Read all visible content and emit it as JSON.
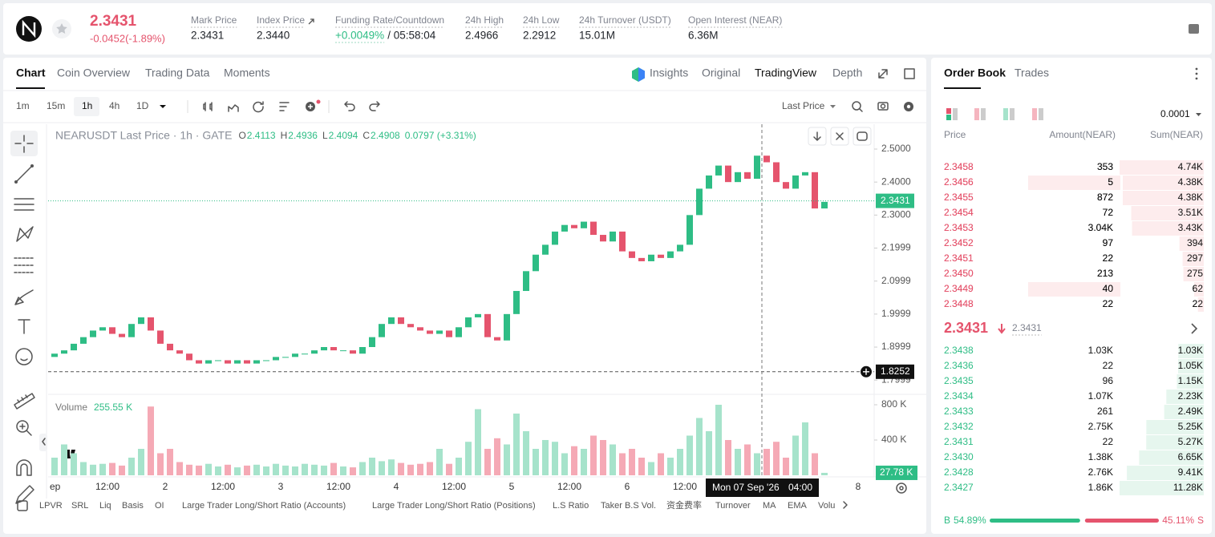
{
  "header": {
    "price": "2.3431",
    "change": "-0.0452(-1.89%)",
    "stats": [
      {
        "label": "Mark Price",
        "value": "2.3431"
      },
      {
        "label": "Index Price",
        "value": "2.3440"
      },
      {
        "label": "Funding Rate/Countdown",
        "value": "+0.0049%",
        "extra": "/ 05:58:04"
      },
      {
        "label": "24h High",
        "value": "2.4966"
      },
      {
        "label": "24h Low",
        "value": "2.2912"
      },
      {
        "label": "24h Turnover (USDT)",
        "value": "15.01M"
      },
      {
        "label": "Open Interest (NEAR)",
        "value": "6.36M"
      }
    ]
  },
  "chart_tabs": [
    "Chart",
    "Coin Overview",
    "Trading Data",
    "Moments"
  ],
  "view_tabs": [
    "Insights",
    "Original",
    "TradingView",
    "Depth"
  ],
  "intervals": [
    "1m",
    "15m",
    "1h",
    "4h",
    "1D"
  ],
  "price_type": "Last Price",
  "indicators": [
    "LPVR",
    "SRL",
    "Liq",
    "Basis",
    "OI",
    "Large Trader Long/Short Ratio (Accounts)",
    "Large Trader Long/Short Ratio (Positions)",
    "L.S Ratio",
    "Taker B.S Vol.",
    "资金费率",
    "Turnover",
    "MA",
    "EMA",
    "Volu"
  ],
  "chart_data": {
    "type": "candlestick",
    "legend": {
      "title": "NEARUSDT Last Price · 1h · GATE",
      "ohlc": [
        {
          "label": "O",
          "value": "2.4113"
        },
        {
          "label": "H",
          "value": "2.4936"
        },
        {
          "label": "L",
          "value": "2.4094"
        },
        {
          "label": "C",
          "value": "2.4908"
        }
      ],
      "change": "0.0797 (+3.31%)"
    },
    "x_labels": [
      "ep",
      "12:00",
      "2",
      "12:00",
      "3",
      "12:00",
      "4",
      "12:00",
      "5",
      "12:00",
      "6",
      "12:00",
      null,
      null,
      "8"
    ],
    "opens": [
      1.87,
      1.88,
      1.89,
      1.91,
      1.93,
      1.95,
      1.96,
      1.94,
      1.93,
      1.97,
      1.99,
      1.95,
      1.91,
      1.89,
      1.88,
      1.86,
      1.85,
      1.86,
      1.86,
      1.85,
      1.86,
      1.85,
      1.86,
      1.86,
      1.87,
      1.87,
      1.88,
      1.88,
      1.89,
      1.9,
      1.89,
      1.89,
      1.88,
      1.9,
      1.93,
      1.97,
      1.99,
      1.97,
      1.96,
      1.95,
      1.94,
      1.95,
      1.93,
      1.96,
      1.99,
      2.0,
      1.93,
      1.92,
      2.0,
      2.07,
      2.13,
      2.18,
      2.21,
      2.25,
      2.27,
      2.26,
      2.28,
      2.24,
      2.22,
      2.25,
      2.19,
      2.17,
      2.16,
      2.18,
      2.17,
      2.19,
      2.21,
      2.3,
      2.38,
      2.42,
      2.45,
      2.4,
      2.43,
      2.41,
      2.48,
      2.46,
      2.4,
      2.38,
      2.42,
      2.43,
      2.32
    ],
    "closes": [
      1.88,
      1.89,
      1.91,
      1.93,
      1.95,
      1.96,
      1.94,
      1.93,
      1.97,
      1.99,
      1.95,
      1.91,
      1.89,
      1.88,
      1.86,
      1.85,
      1.86,
      1.86,
      1.85,
      1.86,
      1.85,
      1.86,
      1.86,
      1.87,
      1.87,
      1.88,
      1.88,
      1.89,
      1.9,
      1.89,
      1.89,
      1.88,
      1.9,
      1.93,
      1.97,
      1.99,
      1.97,
      1.96,
      1.95,
      1.94,
      1.95,
      1.93,
      1.96,
      1.99,
      2.0,
      1.93,
      1.92,
      2.0,
      2.07,
      2.13,
      2.18,
      2.21,
      2.25,
      2.27,
      2.26,
      2.28,
      2.24,
      2.22,
      2.25,
      2.19,
      2.17,
      2.16,
      2.18,
      2.17,
      2.19,
      2.21,
      2.3,
      2.38,
      2.42,
      2.45,
      2.4,
      2.43,
      2.41,
      2.48,
      2.46,
      2.4,
      2.38,
      2.42,
      2.43,
      2.32,
      2.34
    ],
    "up_color": "#2ebd85",
    "down_color": "#e5546d",
    "ylim": [
      1.7567,
      2.5753
    ],
    "yticks": [
      {
        "value": 2.5,
        "label": "2.5000"
      },
      {
        "value": 2.4,
        "label": "2.4000"
      },
      {
        "value": 2.3,
        "label": "2.3000"
      },
      2.1999,
      2.0999,
      1.9999,
      1.8999,
      1.7999
    ],
    "last_price": {
      "value": 2.3431,
      "label": "2.3431"
    },
    "crosshair": {
      "value": 1.8252,
      "label": "1.8252",
      "date": "Mon 07 Sep '26",
      "time": "04:00"
    },
    "volume": {
      "name": "Volume",
      "legend_value": "255.55 K",
      "up_color": "#a6e3cb",
      "down_color": "#f5a9b5",
      "values": [
        200,
        350,
        250,
        150,
        120,
        130,
        140,
        110,
        200,
        300,
        780,
        250,
        300,
        150,
        120,
        110,
        130,
        100,
        120,
        90,
        110,
        120,
        100,
        130,
        110,
        100,
        130,
        120,
        110,
        140,
        100,
        90,
        150,
        200,
        160,
        180,
        140,
        120,
        130,
        150,
        300,
        130,
        200,
        380,
        750,
        300,
        420,
        350,
        700,
        500,
        300,
        400,
        380,
        250,
        330,
        300,
        450,
        400,
        350,
        250,
        300,
        200,
        150,
        250,
        200,
        300,
        450,
        650,
        500,
        800,
        400,
        300,
        350,
        250,
        300,
        380,
        200,
        450,
        600,
        250,
        27.78
      ],
      "ylim": [
        0,
        891
      ],
      "yticks": [
        {
          "value": 800,
          "label": "800 K"
        },
        {
          "value": 400,
          "label": "400 K"
        }
      ],
      "current": {
        "value": 27.78,
        "label": "27.78 K"
      }
    }
  },
  "order_book": {
    "tabs": [
      "Order Book",
      "Trades"
    ],
    "precision": "0.0001",
    "columns": [
      "Price",
      "Amount(NEAR)",
      "Sum(NEAR)"
    ],
    "asks": [
      {
        "price": "2.3458",
        "amount": "353",
        "sum": {
          "value": 4740,
          "label": "4.74K"
        }
      },
      {
        "price": "2.3456",
        "amount": "5",
        "sum": {
          "value": 4380,
          "label": "4.38K"
        }
      },
      {
        "price": "2.3455",
        "amount": "872",
        "sum": {
          "value": 4380,
          "label": "4.38K"
        }
      },
      {
        "price": "2.3454",
        "amount": "72",
        "sum": {
          "value": 3510,
          "label": "3.51K"
        }
      },
      {
        "price": "2.3453",
        "amount": "3.04K",
        "sum": {
          "value": 3430,
          "label": "3.43K"
        }
      },
      {
        "price": "2.3452",
        "amount": "97",
        "sum": {
          "value": 394,
          "label": "394"
        }
      },
      {
        "price": "2.3451",
        "amount": "22",
        "sum": {
          "value": 297,
          "label": "297"
        }
      },
      {
        "price": "2.3450",
        "amount": "213",
        "sum": {
          "value": 275,
          "label": "275"
        }
      },
      {
        "price": "2.3449",
        "amount": "40",
        "sum": {
          "value": 62,
          "label": "62"
        }
      },
      {
        "price": "2.3448",
        "amount": "22",
        "sum": {
          "value": 22,
          "label": "22"
        }
      }
    ],
    "last_price": "2.3431",
    "mark_price": "2.3431",
    "bids": [
      {
        "price": "2.3438",
        "amount": "1.03K",
        "sum": {
          "value": 1030,
          "label": "1.03K"
        }
      },
      {
        "price": "2.3436",
        "amount": "22",
        "sum": {
          "value": 1050,
          "label": "1.05K"
        }
      },
      {
        "price": "2.3435",
        "amount": "96",
        "sum": {
          "value": 1150,
          "label": "1.15K"
        }
      },
      {
        "price": "2.3434",
        "amount": "1.07K",
        "sum": {
          "value": 2230,
          "label": "2.23K"
        }
      },
      {
        "price": "2.3433",
        "amount": "261",
        "sum": {
          "value": 2490,
          "label": "2.49K"
        }
      },
      {
        "price": "2.3432",
        "amount": "2.75K",
        "sum": {
          "value": 5250,
          "label": "5.25K"
        }
      },
      {
        "price": "2.3431",
        "amount": "22",
        "sum": {
          "value": 5270,
          "label": "5.27K"
        }
      },
      {
        "price": "2.3430",
        "amount": "1.38K",
        "sum": {
          "value": 6650,
          "label": "6.65K"
        }
      },
      {
        "price": "2.3428",
        "amount": "2.76K",
        "sum": {
          "value": 9410,
          "label": "9.41K"
        }
      },
      {
        "price": "2.3427",
        "amount": "1.86K",
        "sum": {
          "value": 11280,
          "label": "11.28K"
        }
      }
    ],
    "buy": {
      "label": "B",
      "pct": {
        "value": 54.89,
        "label": "54.89%"
      }
    },
    "sell": {
      "label": "S",
      "pct": {
        "value": 45.11,
        "label": "45.11%"
      }
    }
  }
}
